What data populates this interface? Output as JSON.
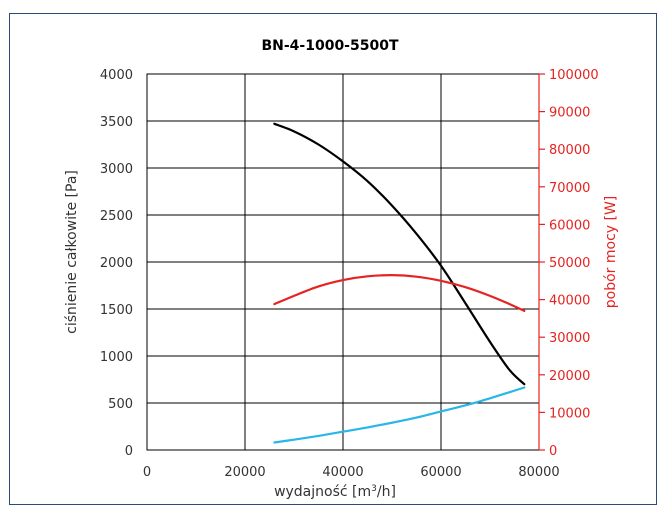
{
  "chart_data": {
    "type": "line",
    "title": "BN-4-1000-5500T",
    "xlabel": "wydajność [m",
    "xlabel_sup": "3",
    "xlabel_end": "/h]",
    "ylabel_left": "ciśnienie całkowite [Pa]",
    "ylabel_right": "pobór mocy [W]",
    "xlim": [
      0,
      80000
    ],
    "ylim_left": [
      0,
      4000
    ],
    "ylim_right": [
      0,
      100000
    ],
    "x_ticks": [
      "0",
      "20000",
      "40000",
      "60000",
      "80000"
    ],
    "y_left_ticks": [
      "0",
      "500",
      "1000",
      "1500",
      "2000",
      "2500",
      "3000",
      "3500",
      "4000"
    ],
    "y_right_ticks": [
      "0",
      "10000",
      "20000",
      "30000",
      "40000",
      "50000",
      "60000",
      "70000",
      "80000",
      "90000",
      "100000"
    ],
    "grid": true,
    "colors": {
      "pressure": "#000000",
      "power": "#e52421",
      "system": "#29b6e8",
      "right_axis": "#e52421",
      "frame": "#2c4a78"
    },
    "series": [
      {
        "key": "pressure",
        "axis": "left",
        "x": [
          26000,
          30000,
          35000,
          40000,
          45000,
          50000,
          55000,
          60000,
          65000,
          70000,
          74000,
          77000
        ],
        "y": [
          3470,
          3390,
          3250,
          3070,
          2860,
          2600,
          2300,
          1960,
          1560,
          1150,
          850,
          700
        ]
      },
      {
        "key": "power",
        "axis": "right",
        "x": [
          26000,
          30000,
          35000,
          40000,
          45000,
          50000,
          55000,
          60000,
          65000,
          70000,
          74000,
          77000
        ],
        "y": [
          38800,
          41000,
          43500,
          45200,
          46200,
          46500,
          46100,
          45000,
          43300,
          41000,
          38800,
          37000
        ]
      },
      {
        "key": "system",
        "axis": "left",
        "x": [
          26000,
          30000,
          35000,
          40000,
          45000,
          50000,
          55000,
          60000,
          65000,
          70000,
          74000,
          77000
        ],
        "y": [
          80,
          110,
          150,
          195,
          240,
          290,
          345,
          410,
          475,
          550,
          615,
          665
        ]
      }
    ]
  }
}
